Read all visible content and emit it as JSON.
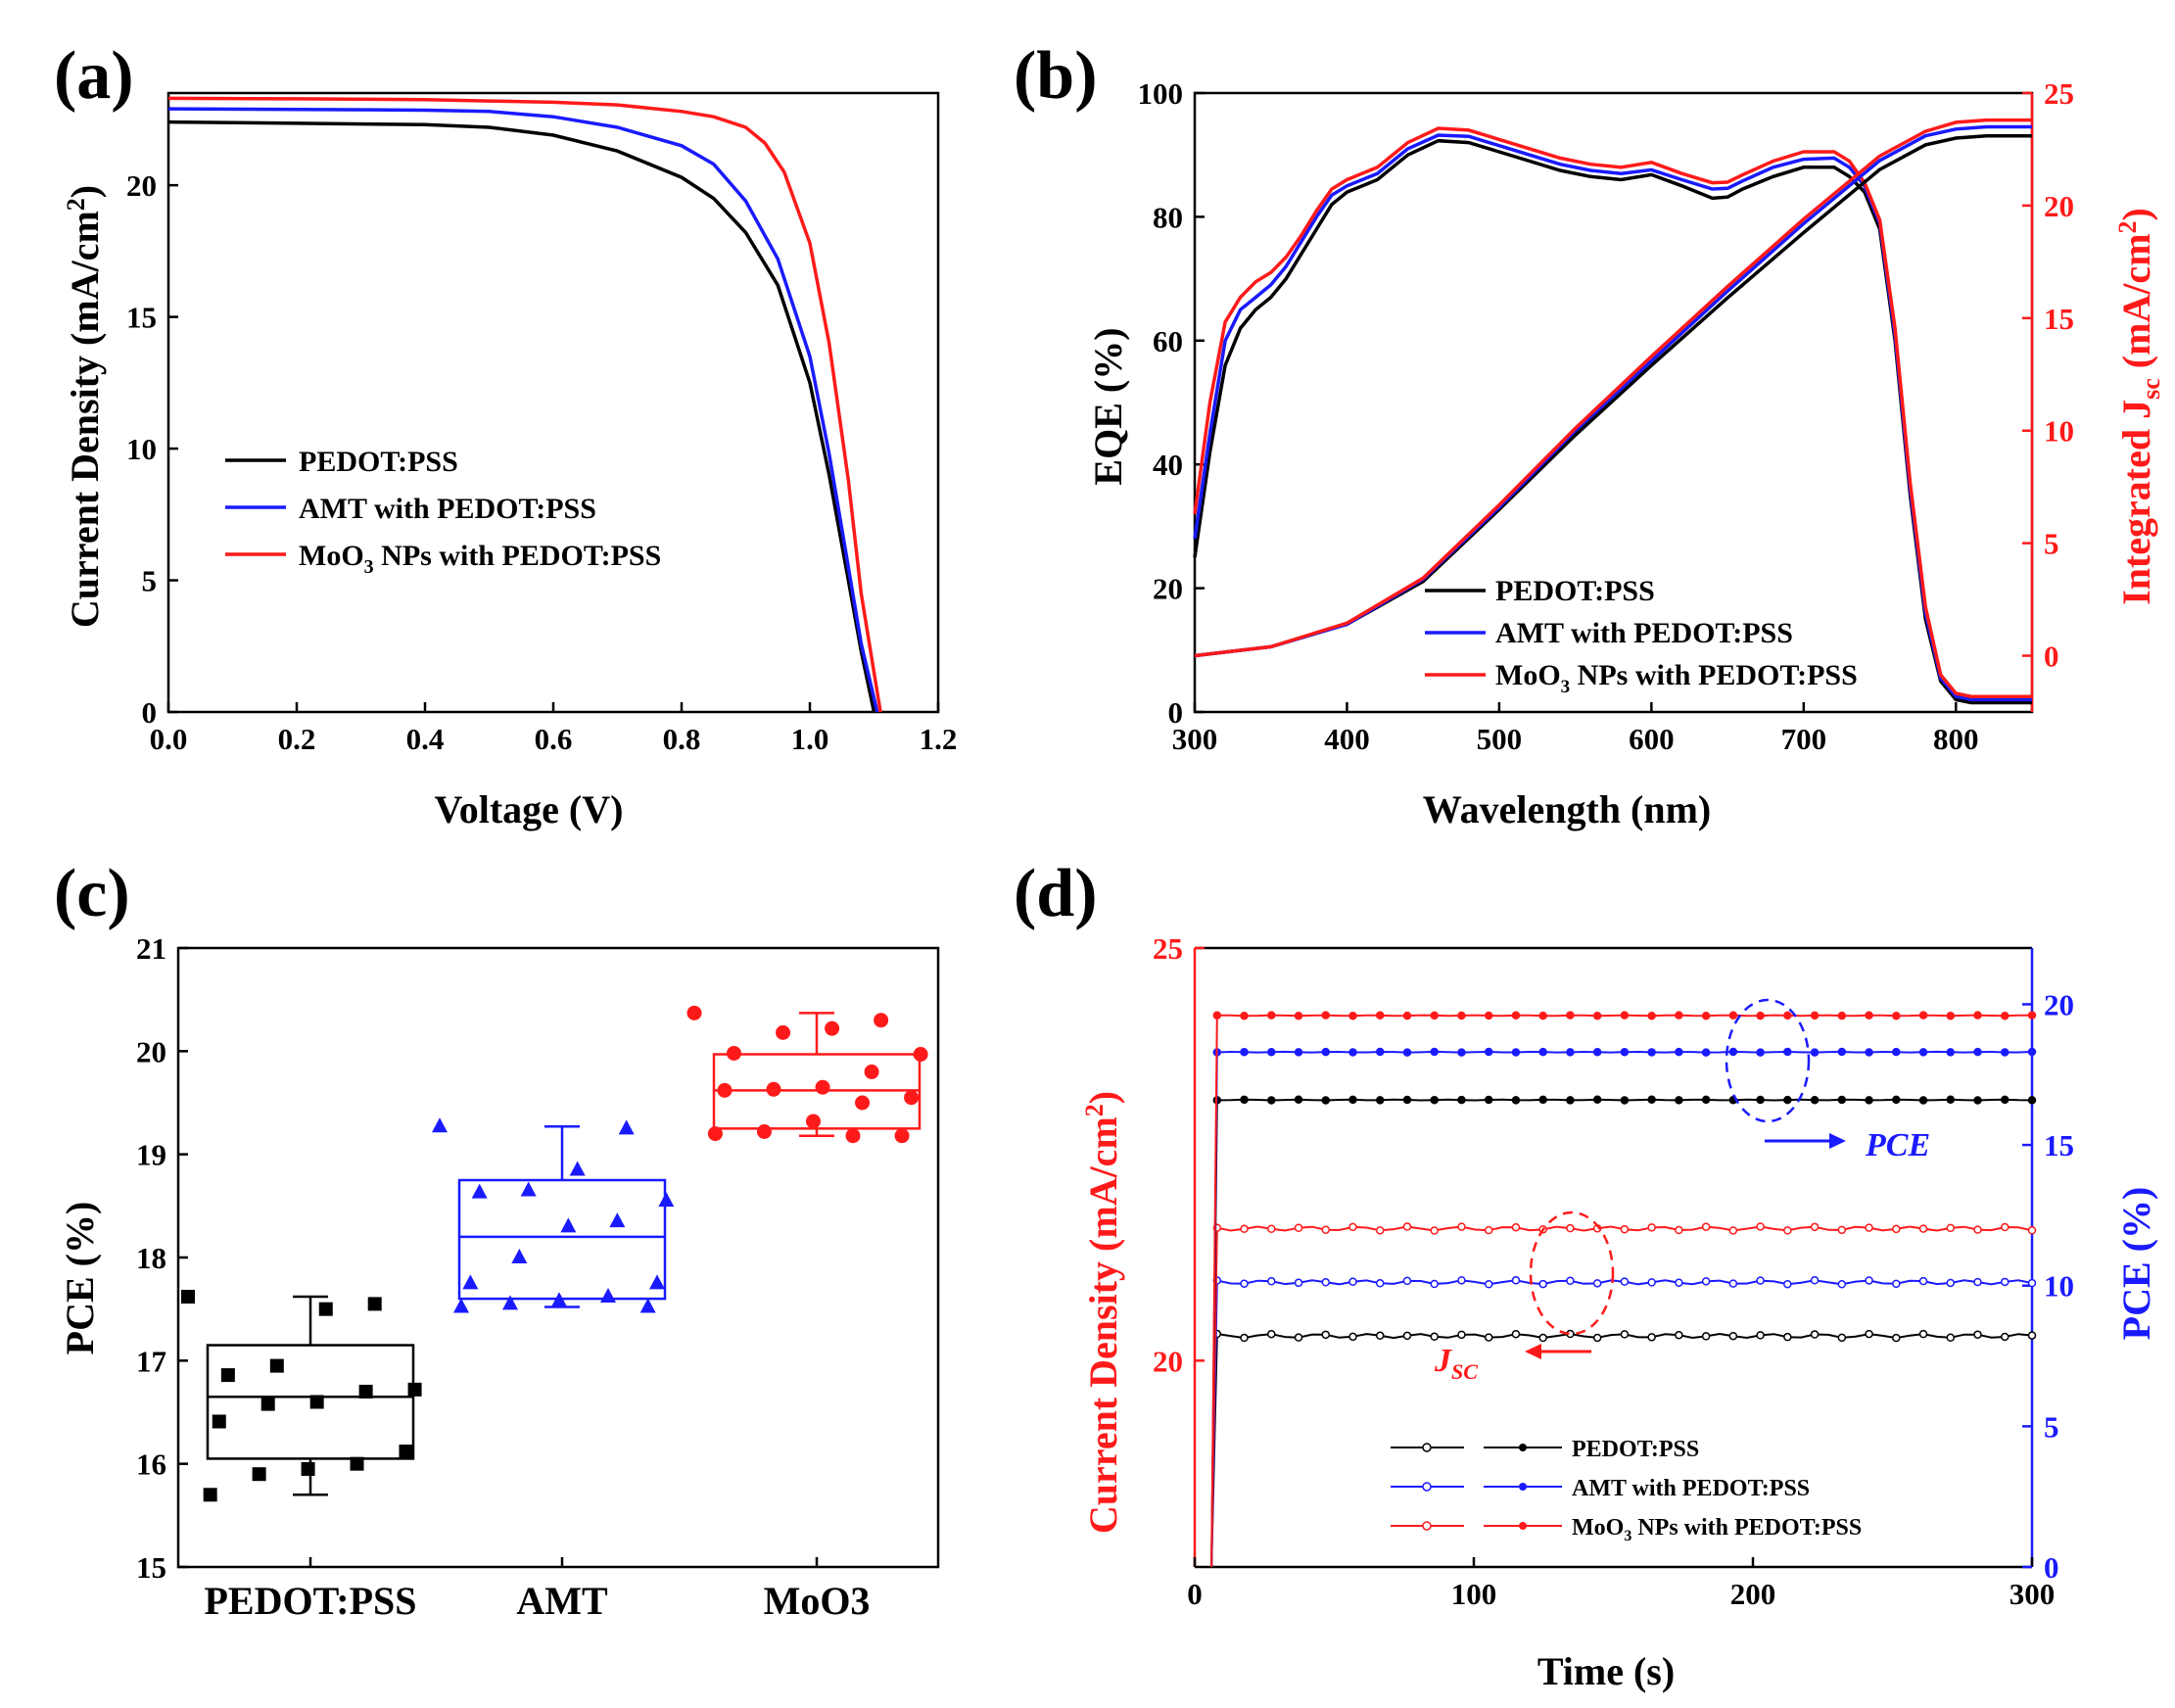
{
  "panels": {
    "a": {
      "label": "(a)"
    },
    "b": {
      "label": "(b)"
    },
    "c": {
      "label": "(c)"
    },
    "d": {
      "label": "(d)"
    }
  },
  "colors": {
    "pedot": "#000000",
    "amt": "#1a1aff",
    "moo3": "#ff1a1a",
    "axis": "#000000"
  },
  "chart_data": [
    {
      "id": "a",
      "type": "line",
      "xlabel": "Voltage (V)",
      "ylabel": "Current Density (mA/cm²)",
      "ylabel_parts": {
        "base": "Current Density (mA/cm",
        "sup": "2",
        "end": ")"
      },
      "xlim": [
        0,
        1.2
      ],
      "ylim": [
        0,
        23.5
      ],
      "xticks": [
        0.0,
        0.2,
        0.4,
        0.6,
        0.8,
        1.0,
        1.2
      ],
      "xtick_labels": [
        "0.0",
        "0.2",
        "0.4",
        "0.6",
        "0.8",
        "1.0",
        "1.2"
      ],
      "yticks": [
        0,
        5,
        10,
        15,
        20
      ],
      "ytick_labels": [
        "0",
        "5",
        "10",
        "15",
        "20"
      ],
      "legend": {
        "entries": [
          "PEDOT:PSS",
          "AMT with PEDOT:PSS",
          "MoO3 NPs with PEDOT:PSS"
        ],
        "moo3_parts": {
          "a": "MoO",
          "sub": "3",
          "b": " NPs with PEDOT:PSS"
        }
      },
      "series": [
        {
          "name": "PEDOT:PSS",
          "x": [
            0,
            0.2,
            0.4,
            0.5,
            0.6,
            0.7,
            0.8,
            0.85,
            0.9,
            0.95,
            1.0,
            1.03,
            1.06,
            1.08,
            1.1
          ],
          "y": [
            22.4,
            22.35,
            22.3,
            22.2,
            21.9,
            21.3,
            20.3,
            19.5,
            18.2,
            16.2,
            12.5,
            9.0,
            5.0,
            2.3,
            0
          ]
        },
        {
          "name": "AMT with PEDOT:PSS",
          "x": [
            0,
            0.2,
            0.4,
            0.5,
            0.6,
            0.7,
            0.8,
            0.85,
            0.9,
            0.95,
            1.0,
            1.03,
            1.06,
            1.08,
            1.105
          ],
          "y": [
            22.9,
            22.88,
            22.85,
            22.8,
            22.6,
            22.2,
            21.5,
            20.8,
            19.4,
            17.2,
            13.5,
            9.8,
            5.5,
            2.6,
            0
          ]
        },
        {
          "name": "MoO3 NPs with PEDOT:PSS",
          "x": [
            0,
            0.2,
            0.4,
            0.5,
            0.6,
            0.7,
            0.8,
            0.85,
            0.9,
            0.93,
            0.96,
            1.0,
            1.03,
            1.06,
            1.08,
            1.11
          ],
          "y": [
            23.3,
            23.28,
            23.25,
            23.2,
            23.15,
            23.05,
            22.8,
            22.6,
            22.2,
            21.6,
            20.5,
            17.8,
            14.0,
            8.8,
            4.5,
            0
          ]
        }
      ]
    },
    {
      "id": "b",
      "type": "line",
      "xlabel": "Wavelength (nm)",
      "ylabel": "EQE (%)",
      "y2label_parts": {
        "base": "Integrated J",
        "sub": "sc",
        "end": " (mA/cm",
        "sup": "2",
        "close": ")"
      },
      "xlim": [
        300,
        850
      ],
      "ylim": [
        0,
        100
      ],
      "y2lim": [
        -2.5,
        25
      ],
      "xticks": [
        300,
        400,
        500,
        600,
        700,
        800
      ],
      "xtick_labels": [
        "300",
        "400",
        "500",
        "600",
        "700",
        "800"
      ],
      "yticks": [
        0,
        20,
        40,
        60,
        80,
        100
      ],
      "ytick_labels": [
        "0",
        "20",
        "40",
        "60",
        "80",
        "100"
      ],
      "y2ticks": [
        0,
        5,
        10,
        15,
        20,
        25
      ],
      "y2tick_labels": [
        "0",
        "5",
        "10",
        "15",
        "20",
        "25"
      ],
      "legend": {
        "entries": [
          "PEDOT:PSS",
          "AMT with PEDOT:PSS",
          "MoO3 NPs with PEDOT:PSS"
        ],
        "moo3_parts": {
          "a": "MoO",
          "sub": "3",
          "b": " NPs with PEDOT:PSS"
        }
      },
      "eqe_series": [
        {
          "name": "PEDOT:PSS",
          "x": [
            300,
            310,
            320,
            330,
            340,
            350,
            360,
            370,
            380,
            390,
            400,
            420,
            440,
            460,
            480,
            500,
            520,
            540,
            560,
            580,
            600,
            620,
            640,
            650,
            660,
            680,
            700,
            720,
            730,
            740,
            750,
            760,
            770,
            780,
            790,
            800,
            810,
            830,
            850
          ],
          "y": [
            25,
            42,
            56,
            62,
            65,
            67,
            70,
            74,
            78,
            82,
            84,
            86,
            90,
            92.3,
            92,
            90.5,
            89,
            87.5,
            86.5,
            86,
            86.8,
            85,
            83,
            83.2,
            84.5,
            86.5,
            88,
            88,
            86.5,
            84,
            78,
            60,
            35,
            15,
            5,
            2,
            1.5,
            1.5,
            1.5
          ]
        },
        {
          "name": "AMT with PEDOT:PSS",
          "x": [
            300,
            310,
            320,
            330,
            340,
            350,
            360,
            370,
            380,
            390,
            400,
            420,
            440,
            460,
            480,
            500,
            520,
            540,
            560,
            580,
            600,
            620,
            640,
            650,
            660,
            680,
            700,
            720,
            730,
            740,
            750,
            760,
            770,
            780,
            790,
            800,
            810,
            830,
            850
          ],
          "y": [
            28,
            45,
            60,
            65,
            67,
            69,
            72,
            76,
            80,
            83.5,
            85,
            87,
            91,
            93.2,
            93,
            91.5,
            90,
            88.5,
            87.5,
            87,
            87.6,
            86,
            84.5,
            84.6,
            85.8,
            88,
            89.3,
            89.5,
            88,
            85,
            79,
            61,
            36,
            16,
            5.5,
            2.5,
            2,
            2,
            2
          ]
        },
        {
          "name": "MoO3 NPs with PEDOT:PSS",
          "x": [
            300,
            310,
            320,
            330,
            340,
            350,
            360,
            370,
            380,
            390,
            400,
            420,
            440,
            460,
            480,
            500,
            520,
            540,
            560,
            580,
            600,
            620,
            640,
            650,
            660,
            680,
            700,
            720,
            730,
            740,
            750,
            760,
            770,
            780,
            790,
            800,
            810,
            830,
            850
          ],
          "y": [
            32,
            50,
            63,
            67,
            69.5,
            71,
            73.5,
            77,
            81,
            84.5,
            86,
            88,
            92,
            94.3,
            94,
            92.5,
            91,
            89.5,
            88.5,
            88,
            88.8,
            87,
            85.5,
            85.6,
            86.8,
            89,
            90.5,
            90.5,
            89,
            85.5,
            79.5,
            62,
            37,
            17,
            6,
            3,
            2.5,
            2.5,
            2.5
          ]
        }
      ],
      "jsc_series": [
        {
          "name": "PEDOT:PSS",
          "x": [
            300,
            350,
            400,
            450,
            500,
            550,
            600,
            650,
            700,
            750,
            780,
            800,
            820,
            850
          ],
          "y": [
            0,
            0.4,
            1.4,
            3.3,
            6.5,
            9.8,
            12.9,
            15.9,
            18.8,
            21.6,
            22.7,
            23.0,
            23.1,
            23.1
          ]
        },
        {
          "name": "AMT with PEDOT:PSS",
          "x": [
            300,
            350,
            400,
            450,
            500,
            550,
            600,
            650,
            700,
            750,
            780,
            800,
            820,
            850
          ],
          "y": [
            0,
            0.4,
            1.4,
            3.4,
            6.6,
            10.0,
            13.1,
            16.2,
            19.2,
            22.0,
            23.1,
            23.4,
            23.5,
            23.5
          ]
        },
        {
          "name": "MoO3 NPs with PEDOT:PSS",
          "x": [
            300,
            350,
            400,
            450,
            500,
            550,
            600,
            650,
            700,
            750,
            780,
            800,
            820,
            850
          ],
          "y": [
            0,
            0.4,
            1.45,
            3.45,
            6.7,
            10.1,
            13.3,
            16.4,
            19.4,
            22.2,
            23.3,
            23.7,
            23.8,
            23.8
          ]
        }
      ]
    },
    {
      "id": "c",
      "type": "box",
      "ylabel": "PCE (%)",
      "ylim": [
        15,
        21
      ],
      "yticks": [
        15,
        16,
        17,
        18,
        19,
        20,
        21
      ],
      "ytick_labels": [
        "15",
        "16",
        "17",
        "18",
        "19",
        "20",
        "21"
      ],
      "categories": [
        "PEDOT:PSS",
        "AMT",
        "MoO3"
      ],
      "boxes": [
        {
          "category": "PEDOT:PSS",
          "min": 15.7,
          "q1": 16.05,
          "median": 16.65,
          "q3": 17.15,
          "max": 17.62,
          "points": [
            17.62,
            17.55,
            17.5,
            16.95,
            16.86,
            16.72,
            16.7,
            16.6,
            16.58,
            16.41,
            16.12,
            16.0,
            15.95,
            15.9,
            15.7
          ]
        },
        {
          "category": "AMT",
          "min": 17.52,
          "q1": 17.6,
          "median": 18.2,
          "q3": 18.75,
          "max": 19.27,
          "points": [
            19.27,
            19.25,
            18.85,
            18.65,
            18.63,
            18.55,
            18.35,
            18.3,
            18.0,
            17.75,
            17.75,
            17.62,
            17.58,
            17.55,
            17.52,
            17.52
          ]
        },
        {
          "category": "MoO3",
          "min": 19.18,
          "q1": 19.25,
          "median": 19.62,
          "q3": 19.97,
          "max": 20.37,
          "points": [
            20.37,
            20.3,
            20.22,
            20.18,
            19.98,
            19.97,
            19.8,
            19.65,
            19.63,
            19.62,
            19.55,
            19.5,
            19.32,
            19.22,
            19.2,
            19.18,
            19.18
          ]
        }
      ]
    },
    {
      "id": "d",
      "type": "line",
      "xlabel": "Time (s)",
      "ylabel": "Current Density (mA/cm²)",
      "ylabel_parts": {
        "base": "Current Density (mA/cm",
        "sup": "2",
        "end": ")"
      },
      "y2label": "PCE (%)",
      "xlim": [
        0,
        300
      ],
      "ylim": [
        17.5,
        25
      ],
      "y2lim": [
        0,
        22
      ],
      "xticks": [
        0,
        100,
        200,
        300
      ],
      "xtick_labels": [
        "0",
        "100",
        "200",
        "300"
      ],
      "yticks": [
        20,
        25
      ],
      "ytick_labels": [
        "20",
        "25"
      ],
      "y2ticks": [
        0,
        5,
        10,
        15,
        20
      ],
      "y2tick_labels": [
        "0",
        "5",
        "10",
        "15",
        "20"
      ],
      "annotations": {
        "pce": "PCE",
        "jsc_a": "J",
        "jsc_sub": "SC"
      },
      "legend": {
        "entries": [
          "PEDOT:PSS",
          "AMT with PEDOT:PSS",
          "MoO3 NPs with PEDOT:PSS"
        ],
        "moo3_parts": {
          "a": "MoO",
          "sub": "3",
          "b": " NPs with PEDOT:PSS"
        }
      },
      "jsc_series": [
        {
          "name": "PEDOT:PSS",
          "y_steady": 20.3
        },
        {
          "name": "AMT with PEDOT:PSS",
          "y_steady": 20.95
        },
        {
          "name": "MoO3 NPs with PEDOT:PSS",
          "y_steady": 21.6
        }
      ],
      "pce_series": [
        {
          "name": "PEDOT:PSS",
          "y_steady": 16.6
        },
        {
          "name": "AMT with PEDOT:PSS",
          "y_steady": 18.3
        },
        {
          "name": "MoO3 NPs with PEDOT:PSS",
          "y_steady": 19.6
        }
      ]
    }
  ]
}
